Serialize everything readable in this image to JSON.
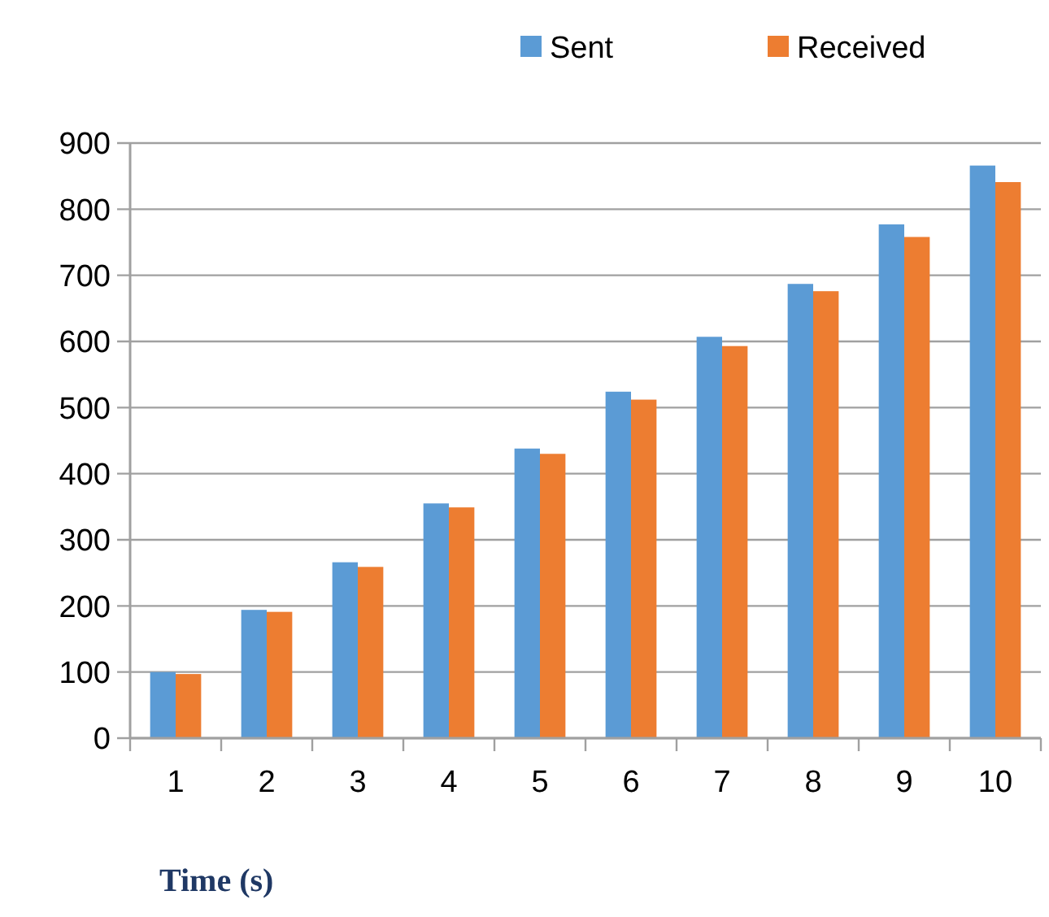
{
  "chart_data": {
    "type": "bar",
    "xlabel": "Time (s)",
    "categories": [
      "1",
      "2",
      "3",
      "4",
      "5",
      "6",
      "7",
      "8",
      "9",
      "10"
    ],
    "series": [
      {
        "name": "Sent",
        "color": "#5b9bd5",
        "values": [
          100,
          194,
          266,
          355,
          438,
          524,
          607,
          687,
          777,
          866
        ]
      },
      {
        "name": "Received",
        "color": "#ed7d31",
        "values": [
          97,
          191,
          259,
          349,
          430,
          512,
          593,
          676,
          758,
          841
        ]
      }
    ],
    "ylim": [
      0,
      900
    ],
    "yticks": [
      0,
      100,
      200,
      300,
      400,
      500,
      600,
      700,
      800,
      900
    ],
    "grid": "y",
    "legend": "top right"
  }
}
